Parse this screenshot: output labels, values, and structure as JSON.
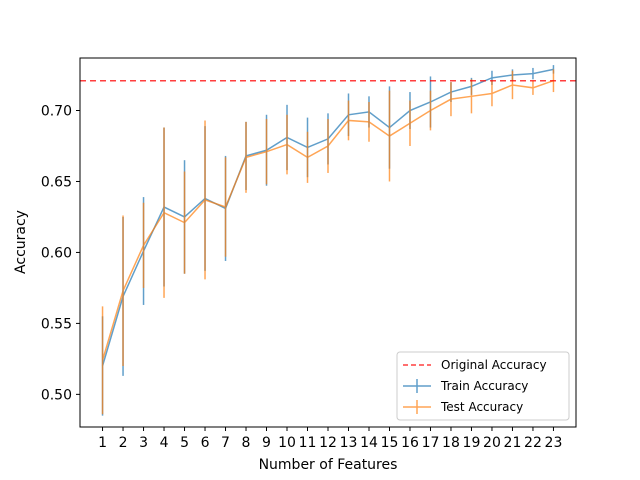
{
  "chart_data": {
    "type": "line",
    "xlabel": "Number of Features",
    "ylabel": "Accuracy",
    "x": [
      1,
      2,
      3,
      4,
      5,
      6,
      7,
      8,
      9,
      10,
      11,
      12,
      13,
      14,
      15,
      16,
      17,
      18,
      19,
      20,
      21,
      22,
      23
    ],
    "ylim": [
      0.477,
      0.737
    ],
    "yticks": [
      0.5,
      0.55,
      0.6,
      0.65,
      0.7
    ],
    "ytick_labels": [
      "0.50",
      "0.55",
      "0.60",
      "0.65",
      "0.70"
    ],
    "xtick_labels": [
      "1",
      "2",
      "3",
      "4",
      "5",
      "6",
      "7",
      "8",
      "9",
      "10",
      "11",
      "12",
      "13",
      "14",
      "15",
      "16",
      "17",
      "18",
      "19",
      "20",
      "21",
      "22",
      "23"
    ],
    "grid": false,
    "legend_position": "lower-right",
    "reference_line": {
      "name": "Original Accuracy",
      "value": 0.721,
      "color": "#ff0000",
      "style": "dashed"
    },
    "series": [
      {
        "name": "Train Accuracy",
        "color": "#1f77b4",
        "values": [
          0.52,
          0.569,
          0.601,
          0.632,
          0.625,
          0.638,
          0.631,
          0.668,
          0.672,
          0.681,
          0.674,
          0.68,
          0.697,
          0.699,
          0.688,
          0.7,
          0.706,
          0.713,
          0.717,
          0.723,
          0.725,
          0.726,
          0.729
        ],
        "errors": [
          0.035,
          0.056,
          0.038,
          0.056,
          0.04,
          0.051,
          0.037,
          0.024,
          0.025,
          0.023,
          0.021,
          0.018,
          0.015,
          0.011,
          0.029,
          0.013,
          0.018,
          0.007,
          0.006,
          0.005,
          0.004,
          0.004,
          0.003
        ]
      },
      {
        "name": "Test Accuracy",
        "color": "#ff7f0e",
        "values": [
          0.524,
          0.573,
          0.605,
          0.628,
          0.621,
          0.637,
          0.632,
          0.667,
          0.671,
          0.676,
          0.667,
          0.675,
          0.693,
          0.692,
          0.682,
          0.691,
          0.7,
          0.708,
          0.71,
          0.712,
          0.718,
          0.716,
          0.721
        ],
        "errors": [
          0.038,
          0.053,
          0.03,
          0.06,
          0.036,
          0.056,
          0.035,
          0.025,
          0.023,
          0.021,
          0.018,
          0.019,
          0.014,
          0.014,
          0.032,
          0.016,
          0.014,
          0.012,
          0.012,
          0.009,
          0.01,
          0.005,
          0.008
        ]
      }
    ]
  }
}
